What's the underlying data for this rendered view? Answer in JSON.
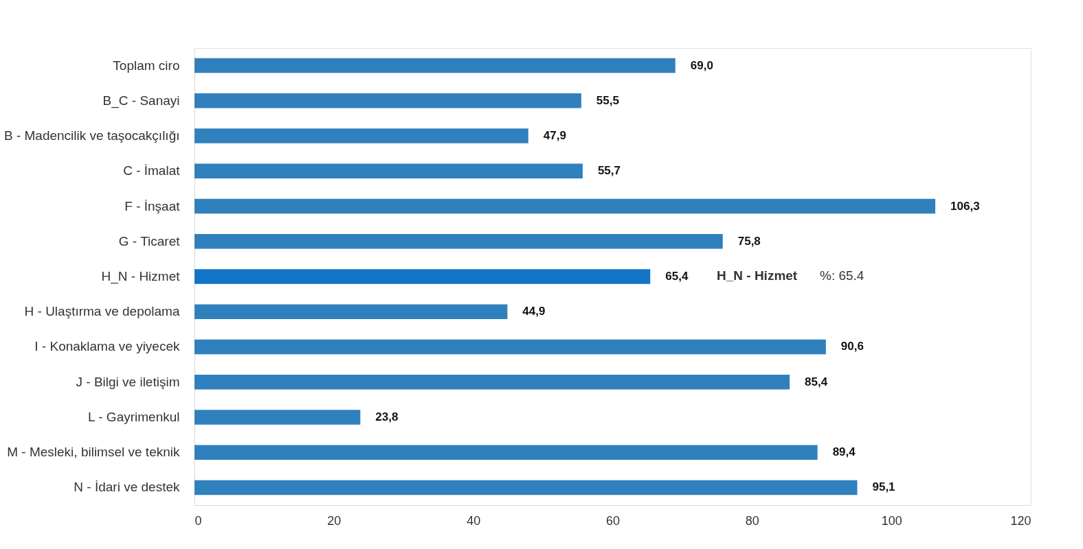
{
  "chart_data": {
    "type": "bar",
    "orientation": "horizontal",
    "categories": [
      "Toplam ciro",
      "B_C - Sanayi",
      "B - Madencilik ve taşocakçılığı",
      "C - İmalat",
      "F - İnşaat",
      "G - Ticaret",
      "H_N - Hizmet",
      "H - Ulaştırma ve depolama",
      "I - Konaklama ve yiyecek",
      "J - Bilgi ve iletişim",
      "L - Gayrimenkul",
      "M - Mesleki, bilimsel ve teknik",
      "N - İdari ve destek"
    ],
    "values": [
      69.0,
      55.5,
      47.9,
      55.7,
      106.3,
      75.8,
      65.4,
      44.9,
      90.6,
      85.4,
      23.8,
      89.4,
      95.1
    ],
    "value_labels": [
      "69,0",
      "55,5",
      "47,9",
      "55,7",
      "106,3",
      "75,8",
      "65,4",
      "44,9",
      "90,6",
      "85,4",
      "23,8",
      "89,4",
      "95,1"
    ],
    "colors": [
      "#3080bd",
      "#3080bd",
      "#3080bd",
      "#3080bd",
      "#3080bd",
      "#3080bd",
      "#1174c7",
      "#3080bd",
      "#3080bd",
      "#3080bd",
      "#3080bd",
      "#3080bd",
      "#3080bd"
    ],
    "xlim": [
      0,
      120
    ],
    "xticks": [
      0,
      20,
      40,
      60,
      80,
      100,
      120
    ],
    "grid": false,
    "annotations": [
      "H_N - Hizmet",
      "%: 65.4"
    ]
  }
}
